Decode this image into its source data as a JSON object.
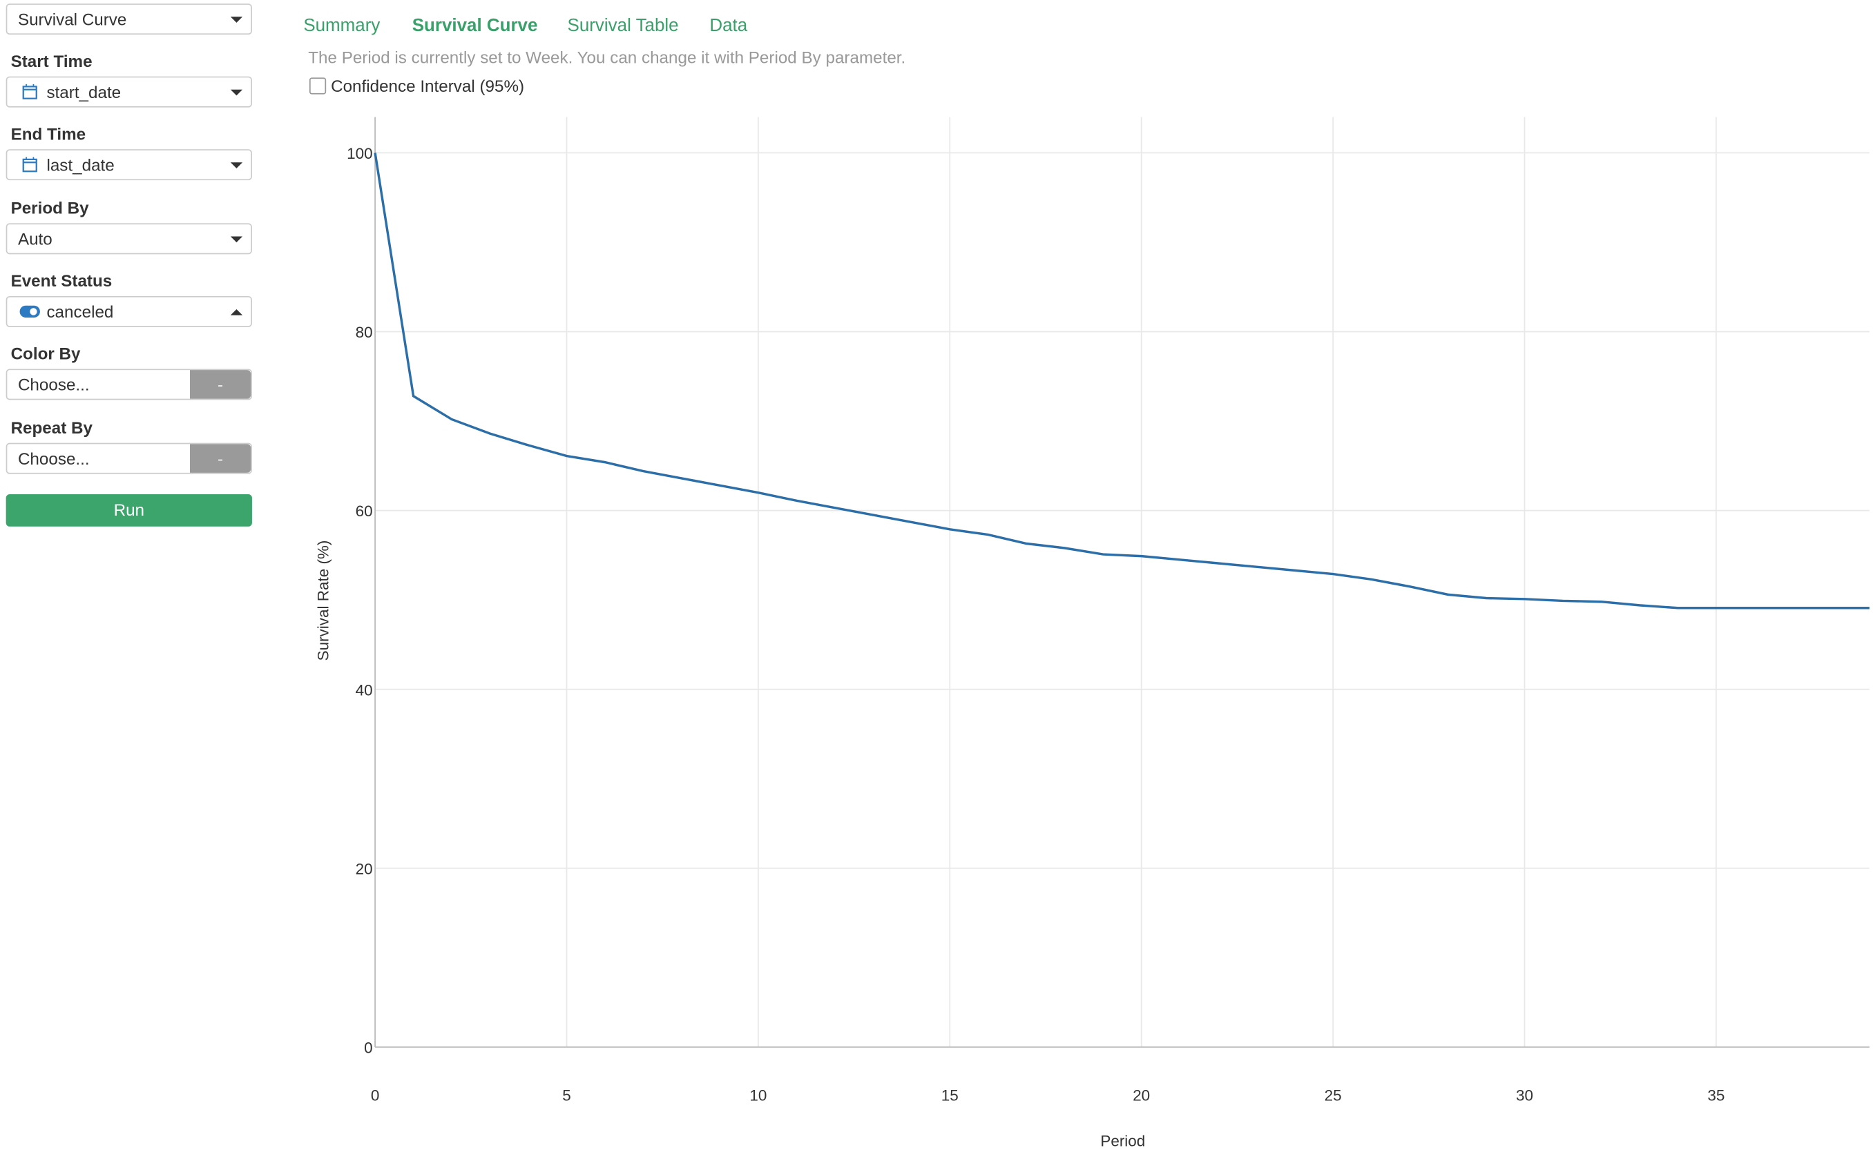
{
  "sidebar": {
    "chart_type": "Survival Curve",
    "fields": [
      {
        "label": "Start Time",
        "value": "start_date"
      },
      {
        "label": "End Time",
        "value": "last_date"
      },
      {
        "label": "Period By",
        "value": "Auto"
      },
      {
        "label": "Event Status",
        "value": "canceled"
      },
      {
        "label": "Color By",
        "value": "Choose...",
        "button": "-"
      },
      {
        "label": "Repeat By",
        "value": "Choose...",
        "button": "-"
      }
    ],
    "run": "Run"
  },
  "tabs": [
    "Summary",
    "Survival Curve",
    "Survival Table",
    "Data"
  ],
  "notice": "The Period is currently set to Week. You can change it with Period By parameter.",
  "checkbox_label": "Confidence Interval (95%)",
  "chart_data": {
    "type": "line",
    "x_label": "Period",
    "y_label": "Survival Rate (%)",
    "x": [
      0,
      1,
      2,
      3,
      4,
      5,
      6,
      7,
      8,
      9,
      10,
      11,
      12,
      13,
      14,
      15,
      16,
      17,
      18,
      19,
      20,
      21,
      22,
      23,
      24,
      25,
      26,
      27,
      28,
      29,
      30,
      31,
      32,
      33,
      34,
      35,
      36,
      37,
      38,
      39
    ],
    "series": [
      {
        "name": "canceled",
        "color": "#2c6ea8",
        "values": [
          100,
          72.8,
          70.2,
          68.6,
          67.3,
          66.1,
          65.4,
          64.4,
          63.6,
          62.8,
          62.0,
          61.1,
          60.3,
          59.5,
          58.7,
          57.9,
          57.3,
          56.3,
          55.8,
          55.1,
          54.9,
          54.5,
          54.1,
          53.7,
          53.3,
          52.9,
          52.3,
          51.5,
          50.6,
          50.2,
          50.1,
          49.9,
          49.8,
          49.4,
          49.1,
          49.1,
          49.1,
          49.1,
          49.1,
          49.1
        ]
      }
    ],
    "xlim": [
      0,
      39
    ],
    "xticks": [
      0,
      5,
      10,
      15,
      20,
      25,
      30,
      35
    ],
    "ylim": [
      0,
      100
    ],
    "yticks": [
      0,
      20,
      40,
      60,
      80,
      100
    ],
    "grid": true
  }
}
